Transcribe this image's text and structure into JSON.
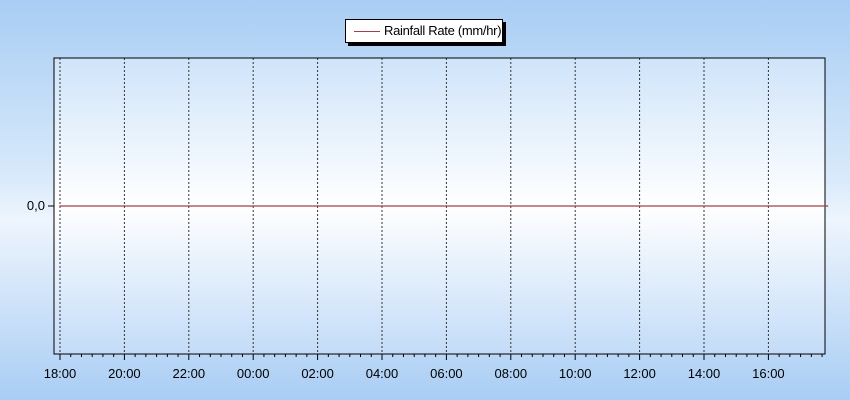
{
  "chart_data": {
    "type": "line",
    "title": "",
    "xlabel": "",
    "ylabel": "",
    "x_tick_labels": [
      "18:00",
      "20:00",
      "22:00",
      "00:00",
      "02:00",
      "04:00",
      "06:00",
      "08:00",
      "10:00",
      "12:00",
      "14:00",
      "16:00"
    ],
    "y_tick_labels": [
      "0,0"
    ],
    "series": [
      {
        "name": "Rainfall Rate (mm/hr)",
        "color": "#a0404a",
        "x": [
          "18:00",
          "20:00",
          "22:00",
          "00:00",
          "02:00",
          "04:00",
          "06:00",
          "08:00",
          "10:00",
          "12:00",
          "14:00",
          "16:00",
          "17:50"
        ],
        "values": [
          0,
          0,
          0,
          0,
          0,
          0,
          0,
          0,
          0,
          0,
          0,
          0,
          0
        ]
      }
    ],
    "ylim": [
      -1,
      1
    ],
    "grid": true,
    "legend": "top-center"
  }
}
